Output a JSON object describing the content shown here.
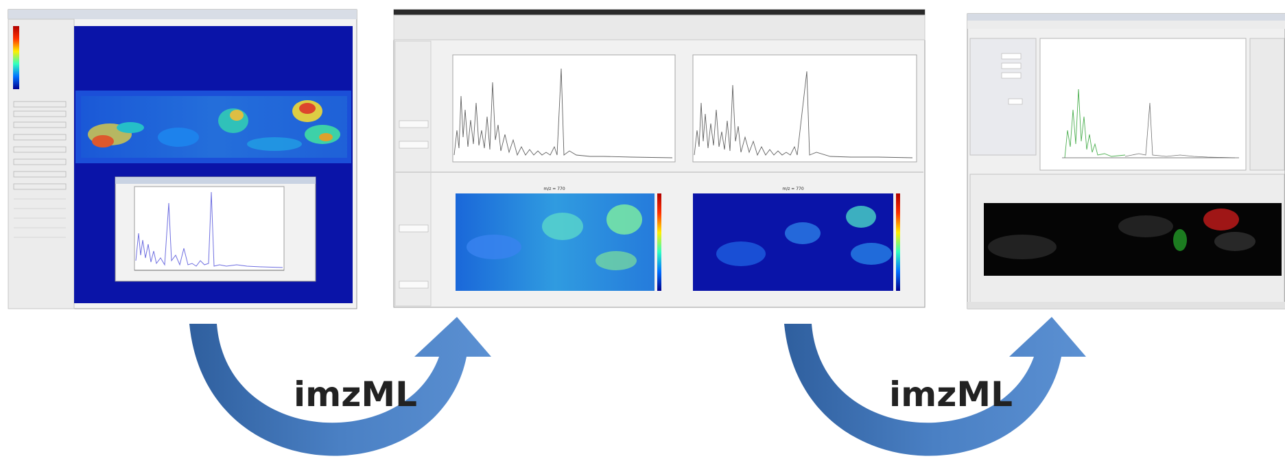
{
  "flow": {
    "arrow_1_label": "imzML",
    "arrow_2_label": "imzML"
  },
  "panels": {
    "middle": {
      "ion_image_title_left": "m/z = 770",
      "ion_image_title_right": "m/z = 770"
    }
  },
  "colors": {
    "arrow_fill": "#3f73b4",
    "arrow_shadow": "#2c5890",
    "ion_image_bg": "#0a14a8"
  }
}
